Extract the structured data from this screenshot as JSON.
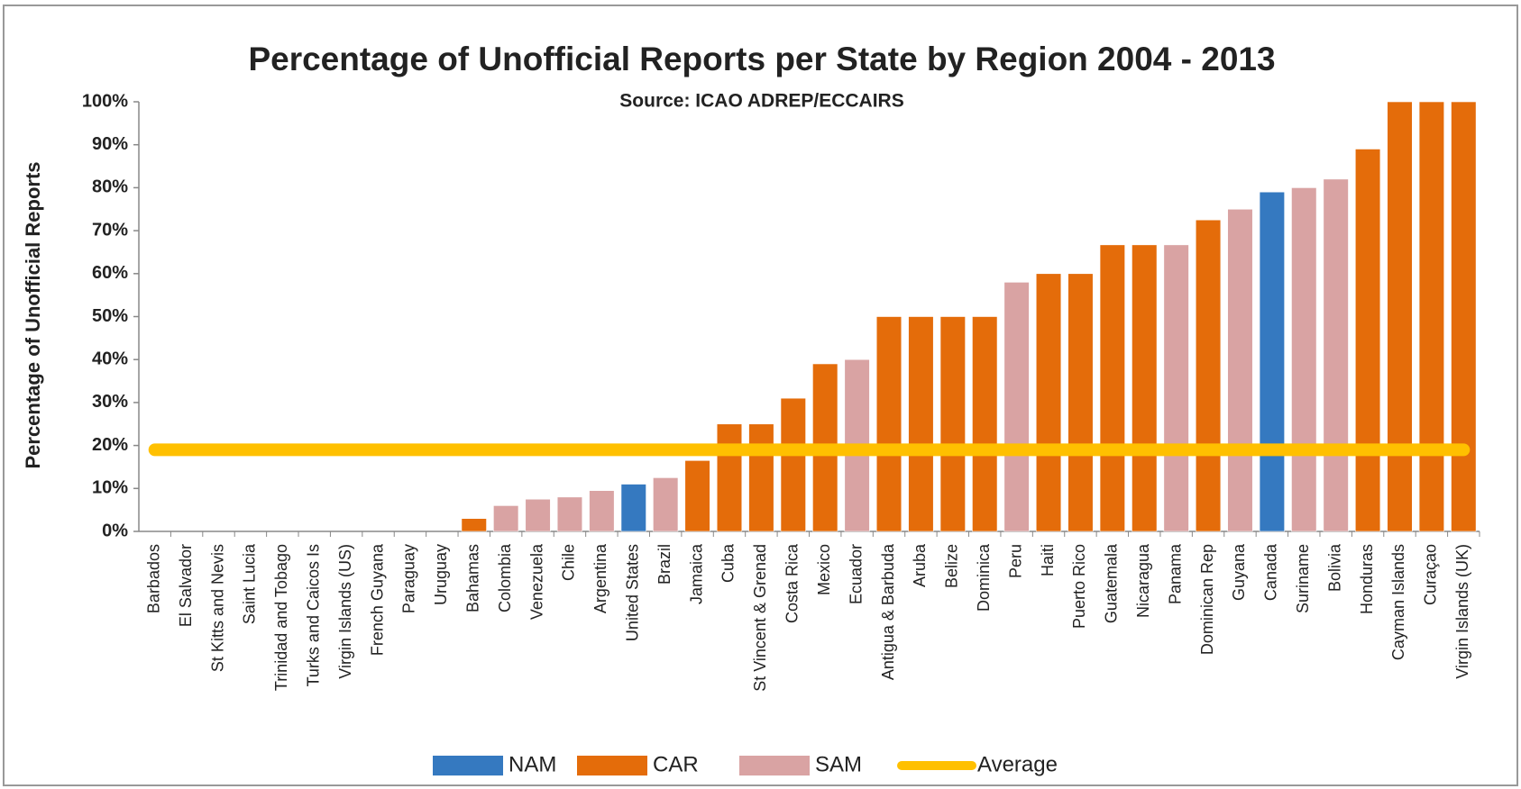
{
  "chart_data": {
    "type": "bar",
    "title": "Percentage of Unofficial Reports per State by Region 2004 - 2013",
    "subtitle": "Source: ICAO ADREP/ECCAIRS",
    "y_label": "Percentage of Unofficial Reports",
    "categories": [
      "Barbados",
      "El Salvador",
      "St Kitts and Nevis",
      "Saint Lucia",
      "Trinidad and Tobago",
      "Turks and Caicos Is",
      "Virgin Islands (US)",
      "French Guyana",
      "Paraguay",
      "Uruguay",
      "Bahamas",
      "Colombia",
      "Venezuela",
      "Chile",
      "Argentina",
      "United States",
      "Brazil",
      "Jamaica",
      "Cuba",
      "St Vincent & Grenad",
      "Costa Rica",
      "Mexico",
      "Ecuador",
      "Antigua & Barbuda",
      "Aruba",
      "Belize",
      "Dominica",
      "Peru",
      "Haiti",
      "Puerto Rico",
      "Guatemala",
      "Nicaragua",
      "Panama",
      "Dominican Rep",
      "Guyana",
      "Canada",
      "Suriname",
      "Bolivia",
      "Honduras",
      "Cayman Islands",
      "Curaçao",
      "Virgin Islands (UK)"
    ],
    "series": [
      {
        "name": "NAM",
        "color": "#3579c0",
        "values": [
          null,
          null,
          null,
          null,
          null,
          null,
          null,
          null,
          null,
          null,
          null,
          null,
          null,
          null,
          null,
          11,
          null,
          null,
          null,
          null,
          null,
          null,
          null,
          null,
          null,
          null,
          null,
          null,
          null,
          null,
          null,
          null,
          null,
          null,
          null,
          79,
          null,
          null,
          null,
          null,
          null,
          null
        ]
      },
      {
        "name": "CAR",
        "color": "#e46c0a",
        "values": [
          0,
          0,
          0,
          0,
          0,
          0,
          0,
          null,
          null,
          null,
          3,
          null,
          null,
          null,
          null,
          null,
          null,
          16.5,
          25,
          25,
          31,
          39,
          null,
          50,
          50,
          50,
          50,
          null,
          60,
          60,
          66.7,
          66.7,
          null,
          72.5,
          null,
          null,
          null,
          null,
          89,
          100,
          100,
          100
        ]
      },
      {
        "name": "SAM",
        "color": "#d9a3a3",
        "values": [
          null,
          null,
          null,
          null,
          null,
          null,
          null,
          0,
          0,
          0,
          null,
          6,
          7.5,
          8,
          9.5,
          null,
          12.5,
          null,
          null,
          null,
          null,
          null,
          40,
          null,
          null,
          null,
          null,
          58,
          null,
          null,
          null,
          null,
          66.7,
          null,
          75,
          null,
          80,
          82,
          null,
          null,
          null,
          null
        ]
      }
    ],
    "average": {
      "name": "Average",
      "color": "#ffc000",
      "value": 19
    },
    "ylim": [
      0,
      100
    ],
    "yticks": [
      {
        "value": 0,
        "label": "0%"
      },
      {
        "value": 10,
        "label": "10%"
      },
      {
        "value": 20,
        "label": "20%"
      },
      {
        "value": 30,
        "label": "30%"
      },
      {
        "value": 40,
        "label": "40%"
      },
      {
        "value": 50,
        "label": "50%"
      },
      {
        "value": 60,
        "label": "60%"
      },
      {
        "value": 70,
        "label": "70%"
      },
      {
        "value": 80,
        "label": "80%"
      },
      {
        "value": 90,
        "label": "90%"
      },
      {
        "value": 100,
        "label": "100%"
      }
    ],
    "legend": "bottom"
  }
}
